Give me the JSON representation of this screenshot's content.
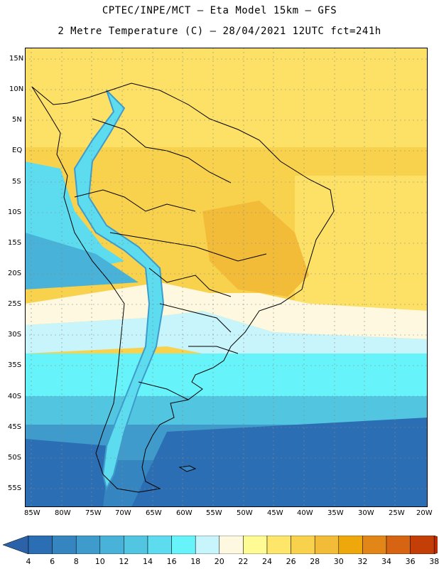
{
  "header": {
    "title_line1": "CPTEC/INPE/MCT –  Eta Model 15km – GFS",
    "title_line2": "2 Metre Temperature (C) – 28/04/2021 12UTC fct=241h"
  },
  "map": {
    "lat_labels": [
      "15N",
      "10N",
      "5N",
      "EQ",
      "5S",
      "10S",
      "15S",
      "20S",
      "25S",
      "30S",
      "35S",
      "40S",
      "45S",
      "50S",
      "55S"
    ],
    "lon_labels": [
      "85W",
      "80W",
      "75W",
      "70W",
      "65W",
      "60W",
      "55W",
      "50W",
      "45W",
      "40W",
      "35W",
      "30W",
      "25W",
      "20W"
    ]
  },
  "colorbar": {
    "labels": [
      "4",
      "6",
      "8",
      "10",
      "12",
      "14",
      "16",
      "18",
      "20",
      "22",
      "24",
      "26",
      "28",
      "30",
      "32",
      "34",
      "36",
      "38"
    ],
    "colors": [
      "#2c6eb4",
      "#3585c0",
      "#3f9bcc",
      "#48b2d8",
      "#52c6e0",
      "#5cdcee",
      "#66f4fa",
      "#c8f4fc",
      "#fef8e0",
      "#fefa94",
      "#fde66a",
      "#f8d24c",
      "#f2bc38",
      "#eea80c",
      "#e28618",
      "#d66412",
      "#c43e08"
    ]
  }
}
